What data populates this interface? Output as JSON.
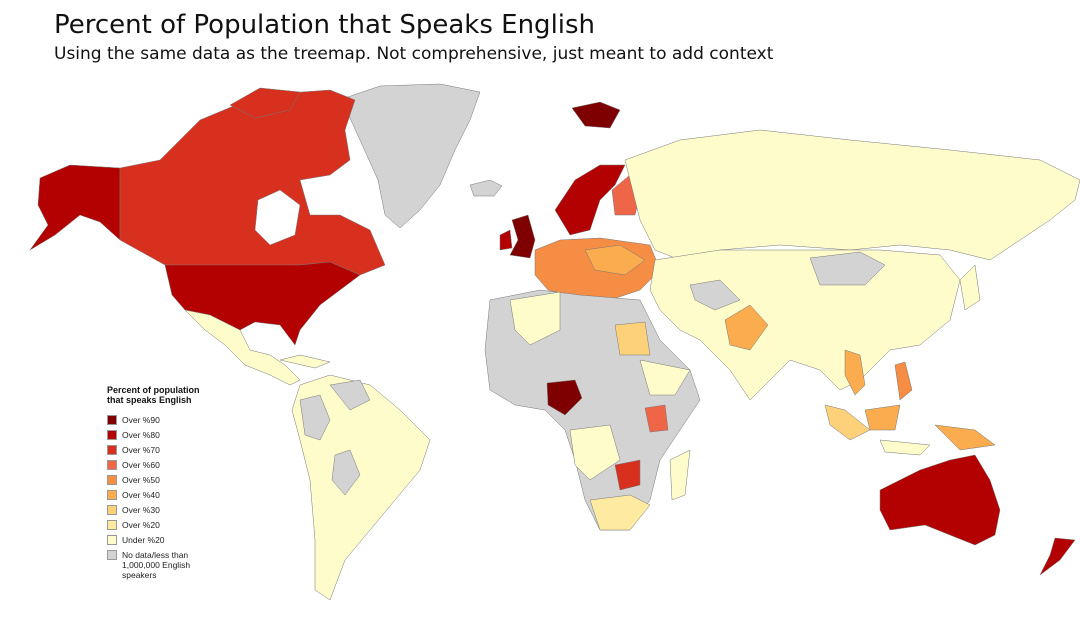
{
  "header": {
    "title": "Percent of Population that Speaks English",
    "subtitle": "Using the same data as the treemap. Not comprehensive, just meant to add context"
  },
  "legend": {
    "title": "Percent of population that speaks English",
    "items": [
      {
        "label": "Over %90",
        "color": "#7f0000"
      },
      {
        "label": "Over %80",
        "color": "#b30000"
      },
      {
        "label": "Over %70",
        "color": "#d7301f"
      },
      {
        "label": "Over %60",
        "color": "#ef6548"
      },
      {
        "label": "Over %50",
        "color": "#f68d45"
      },
      {
        "label": "Over %40",
        "color": "#fbac4e"
      },
      {
        "label": "Over %30",
        "color": "#fdd17a"
      },
      {
        "label": "Over %20",
        "color": "#feeaa0"
      },
      {
        "label": "Under %20",
        "color": "#fffccc"
      },
      {
        "label": "No data/less than 1,000,000 English speakers",
        "color": "#d3d3d3"
      }
    ]
  }
}
